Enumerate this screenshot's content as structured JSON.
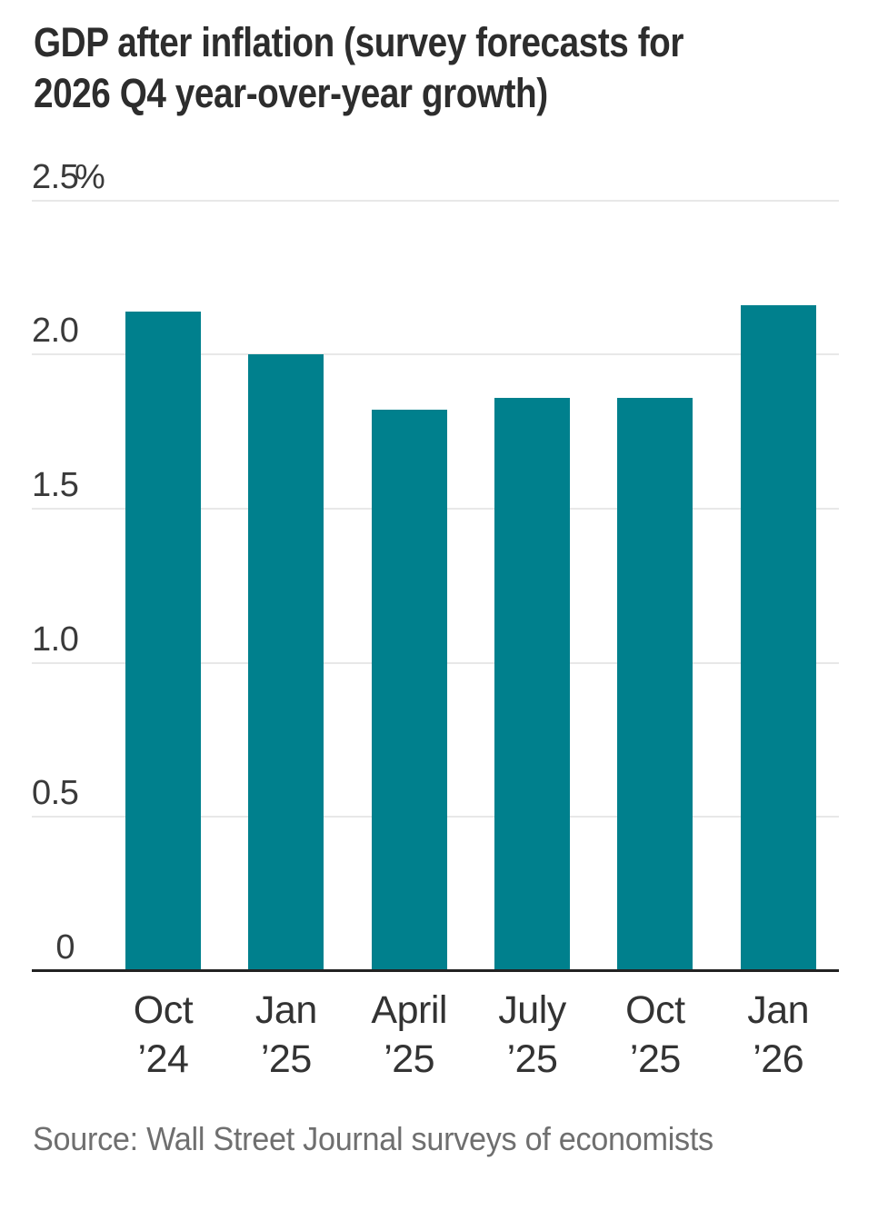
{
  "header": {
    "title_lines": [
      "GDP after inflation (survey forecasts for",
      "2026 Q4 year-over-year growth)"
    ]
  },
  "chart_data": {
    "type": "bar",
    "title": "GDP after inflation (survey forecasts for 2026 Q4 year-over-year growth)",
    "categories": [
      "Oct ’24",
      "Jan ’25",
      "April ’25",
      "July ’25",
      "Oct ’25",
      "Jan ’26"
    ],
    "values": [
      2.14,
      2.0,
      1.82,
      1.86,
      1.86,
      2.16
    ],
    "unit": "%",
    "xlabel": "",
    "ylabel": "",
    "ylim": [
      0,
      2.5
    ],
    "grid": true,
    "legend": "none",
    "y_ticks": [
      {
        "value": 2.5,
        "label": "2.5",
        "suffix": "%"
      },
      {
        "value": 2.0,
        "label": "2.0",
        "suffix": ""
      },
      {
        "value": 1.5,
        "label": "1.5",
        "suffix": ""
      },
      {
        "value": 1.0,
        "label": "1.0",
        "suffix": ""
      },
      {
        "value": 0.5,
        "label": "0.5",
        "suffix": ""
      },
      {
        "value": 0,
        "label": "0",
        "suffix": ""
      }
    ]
  },
  "footer": {
    "source": "Source: Wall Street Journal surveys of economists"
  },
  "colors": {
    "bar": "#00808D",
    "grid": "#e8e8e8",
    "axis": "#222222",
    "title": "#2d2d2d",
    "tick": "#3a3a3a",
    "source": "#6f6f6f",
    "background": "#ffffff"
  }
}
